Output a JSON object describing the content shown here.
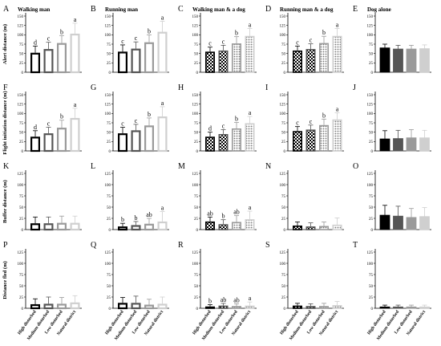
{
  "colors": {
    "bar1": "#000000",
    "bar2": "#555555",
    "bar3": "#9a9a9a",
    "bar4": "#cfcfcf",
    "pattern_fill": "#000000",
    "background": "#ffffff"
  },
  "groups": [
    "High disturbed",
    "Medium disturbed",
    "Low disturbed",
    "Natural district"
  ],
  "row_labels": [
    "Alert distance (m)",
    "Flight initiation distance (m)",
    "Buffer distance (m)",
    "Distance fled (m)"
  ],
  "chart_data": {
    "type": "bar",
    "layout": "4 rows x 5 columns of panels",
    "categories": [
      "High disturbed",
      "Medium disturbed",
      "Low disturbed",
      "Natural district"
    ],
    "panels": [
      {
        "letter": "A",
        "title": "Walking man",
        "ylabel": "Alert distance (m)",
        "ylim": [
          0,
          150
        ],
        "yticks": [
          0,
          25,
          50,
          75,
          100,
          125,
          150
        ],
        "values": [
          52,
          62,
          78,
          103
        ],
        "errors": [
          18,
          18,
          20,
          28
        ],
        "sig": [
          "d",
          "c",
          "b",
          "a"
        ],
        "style": "hollow"
      },
      {
        "letter": "B",
        "title": "Running man",
        "ylabel": "",
        "ylim": [
          0,
          150
        ],
        "yticks": [
          0,
          25,
          50,
          75,
          100,
          125,
          150
        ],
        "values": [
          55,
          63,
          80,
          108
        ],
        "errors": [
          18,
          18,
          20,
          28
        ],
        "sig": [
          "c",
          "c",
          "b",
          "a"
        ],
        "style": "hollow"
      },
      {
        "letter": "C",
        "title": "Walking man & a dog",
        "ylabel": "",
        "ylim": [
          0,
          150
        ],
        "yticks": [
          0,
          25,
          50,
          75,
          100,
          125,
          150
        ],
        "values": [
          55,
          58,
          77,
          97
        ],
        "errors": [
          12,
          14,
          18,
          20
        ],
        "sig": [
          "c",
          "c",
          "b",
          "a"
        ],
        "style": "patterned"
      },
      {
        "letter": "D",
        "title": "Running man & a dog",
        "ylabel": "",
        "ylim": [
          0,
          150
        ],
        "yticks": [
          0,
          25,
          50,
          75,
          100,
          125,
          150
        ],
        "values": [
          58,
          62,
          78,
          97
        ],
        "errors": [
          12,
          14,
          18,
          20
        ],
        "sig": [
          "c",
          "c",
          "b",
          "a"
        ],
        "style": "patterned"
      },
      {
        "letter": "E",
        "title": "Dog alone",
        "ylabel": "",
        "ylim": [
          0,
          150
        ],
        "yticks": [
          0,
          25,
          50,
          75,
          100,
          125,
          150
        ],
        "values": [
          65,
          62,
          62,
          63
        ],
        "errors": [
          10,
          10,
          10,
          10
        ],
        "sig": [
          "",
          "",
          "",
          ""
        ],
        "style": "solid"
      },
      {
        "letter": "F",
        "title": "",
        "ylabel": "Flight initiation distance (m)",
        "ylim": [
          0,
          150
        ],
        "yticks": [
          0,
          25,
          50,
          75,
          100,
          125,
          150
        ],
        "values": [
          38,
          47,
          62,
          88
        ],
        "errors": [
          16,
          16,
          20,
          26
        ],
        "sig": [
          "d",
          "c",
          "b",
          "a"
        ],
        "style": "hollow"
      },
      {
        "letter": "G",
        "title": "",
        "ylabel": "",
        "ylim": [
          0,
          150
        ],
        "yticks": [
          0,
          25,
          50,
          75,
          100,
          125,
          150
        ],
        "values": [
          47,
          55,
          68,
          92
        ],
        "errors": [
          16,
          16,
          20,
          26
        ],
        "sig": [
          "c",
          "c",
          "b",
          "a"
        ],
        "style": "hollow"
      },
      {
        "letter": "H",
        "title": "",
        "ylabel": "",
        "ylim": [
          0,
          150
        ],
        "yticks": [
          0,
          25,
          50,
          75,
          100,
          125,
          150
        ],
        "values": [
          38,
          45,
          60,
          74
        ],
        "errors": [
          12,
          12,
          16,
          18
        ],
        "sig": [
          "d",
          "c",
          "b",
          "a"
        ],
        "style": "patterned"
      },
      {
        "letter": "I",
        "title": "",
        "ylabel": "",
        "ylim": [
          0,
          150
        ],
        "yticks": [
          0,
          25,
          50,
          75,
          100,
          125,
          150
        ],
        "values": [
          53,
          57,
          69,
          84
        ],
        "errors": [
          12,
          12,
          16,
          18
        ],
        "sig": [
          "c",
          "c",
          "b",
          "a"
        ],
        "style": "patterned"
      },
      {
        "letter": "J",
        "title": "",
        "ylabel": "",
        "ylim": [
          0,
          150
        ],
        "yticks": [
          0,
          25,
          50,
          75,
          100,
          125,
          150
        ],
        "values": [
          32,
          33,
          35,
          35
        ],
        "errors": [
          22,
          22,
          22,
          20
        ],
        "sig": [
          "",
          "",
          "",
          ""
        ],
        "style": "solid"
      },
      {
        "letter": "K",
        "title": "",
        "ylabel": "Buffer distance (m)",
        "ylim": [
          0,
          125
        ],
        "yticks": [
          0,
          25,
          50,
          75,
          100,
          125
        ],
        "values": [
          14,
          14,
          15,
          15
        ],
        "errors": [
          14,
          14,
          15,
          15
        ],
        "sig": [
          "",
          "",
          "",
          ""
        ],
        "style": "hollow"
      },
      {
        "letter": "L",
        "title": "",
        "ylabel": "",
        "ylim": [
          0,
          125
        ],
        "yticks": [
          0,
          25,
          50,
          75,
          100,
          125
        ],
        "values": [
          7,
          10,
          13,
          18
        ],
        "errors": [
          7,
          8,
          12,
          22
        ],
        "sig": [
          "b",
          "b",
          "ab",
          "a"
        ],
        "style": "hollow"
      },
      {
        "letter": "M",
        "title": "",
        "ylabel": "",
        "ylim": [
          0,
          125
        ],
        "yticks": [
          0,
          25,
          50,
          75,
          100,
          125
        ],
        "values": [
          18,
          12,
          17,
          23
        ],
        "errors": [
          10,
          10,
          14,
          18
        ],
        "sig": [
          "ab",
          "b",
          "ab",
          "a"
        ],
        "style": "patterned"
      },
      {
        "letter": "N",
        "title": "",
        "ylabel": "",
        "ylim": [
          0,
          125
        ],
        "yticks": [
          0,
          25,
          50,
          75,
          100,
          125
        ],
        "values": [
          9,
          7,
          8,
          11
        ],
        "errors": [
          8,
          8,
          9,
          15
        ],
        "sig": [
          "",
          "",
          "",
          ""
        ],
        "style": "patterned"
      },
      {
        "letter": "O",
        "title": "",
        "ylabel": "",
        "ylim": [
          0,
          125
        ],
        "yticks": [
          0,
          25,
          50,
          75,
          100,
          125
        ],
        "values": [
          32,
          30,
          27,
          29
        ],
        "errors": [
          22,
          22,
          20,
          20
        ],
        "sig": [
          "",
          "",
          "",
          ""
        ],
        "style": "solid"
      },
      {
        "letter": "P",
        "title": "",
        "ylabel": "Distance fled (m)",
        "ylim": [
          0,
          125
        ],
        "yticks": [
          0,
          25,
          50,
          75,
          100,
          125
        ],
        "values": [
          9,
          10,
          10,
          13
        ],
        "errors": [
          12,
          15,
          14,
          15
        ],
        "sig": [
          "",
          "",
          "",
          ""
        ],
        "style": "hollow"
      },
      {
        "letter": "Q",
        "title": "",
        "ylabel": "",
        "ylim": [
          0,
          125
        ],
        "yticks": [
          0,
          25,
          50,
          75,
          100,
          125
        ],
        "values": [
          12,
          12,
          8,
          10
        ],
        "errors": [
          12,
          15,
          12,
          15
        ],
        "sig": [
          "",
          "",
          "",
          ""
        ],
        "style": "hollow"
      },
      {
        "letter": "R",
        "title": "",
        "ylabel": "",
        "ylim": [
          0,
          125
        ],
        "yticks": [
          0,
          25,
          50,
          75,
          100,
          125
        ],
        "values": [
          4,
          6,
          5,
          6
        ],
        "errors": [
          4,
          5,
          5,
          8
        ],
        "sig": [
          "b",
          "ab",
          "ab",
          "a"
        ],
        "style": "patterned"
      },
      {
        "letter": "S",
        "title": "",
        "ylabel": "",
        "ylim": [
          0,
          125
        ],
        "yticks": [
          0,
          25,
          50,
          75,
          100,
          125
        ],
        "values": [
          6,
          5,
          5,
          7
        ],
        "errors": [
          5,
          5,
          6,
          8
        ],
        "sig": [
          "",
          "",
          "",
          ""
        ],
        "style": "patterned"
      },
      {
        "letter": "T",
        "title": "",
        "ylabel": "",
        "ylim": [
          0,
          125
        ],
        "yticks": [
          0,
          25,
          50,
          75,
          100,
          125
        ],
        "values": [
          3,
          3,
          3,
          3
        ],
        "errors": [
          4,
          4,
          4,
          4
        ],
        "sig": [
          "",
          "",
          "",
          ""
        ],
        "style": "solid"
      }
    ]
  }
}
